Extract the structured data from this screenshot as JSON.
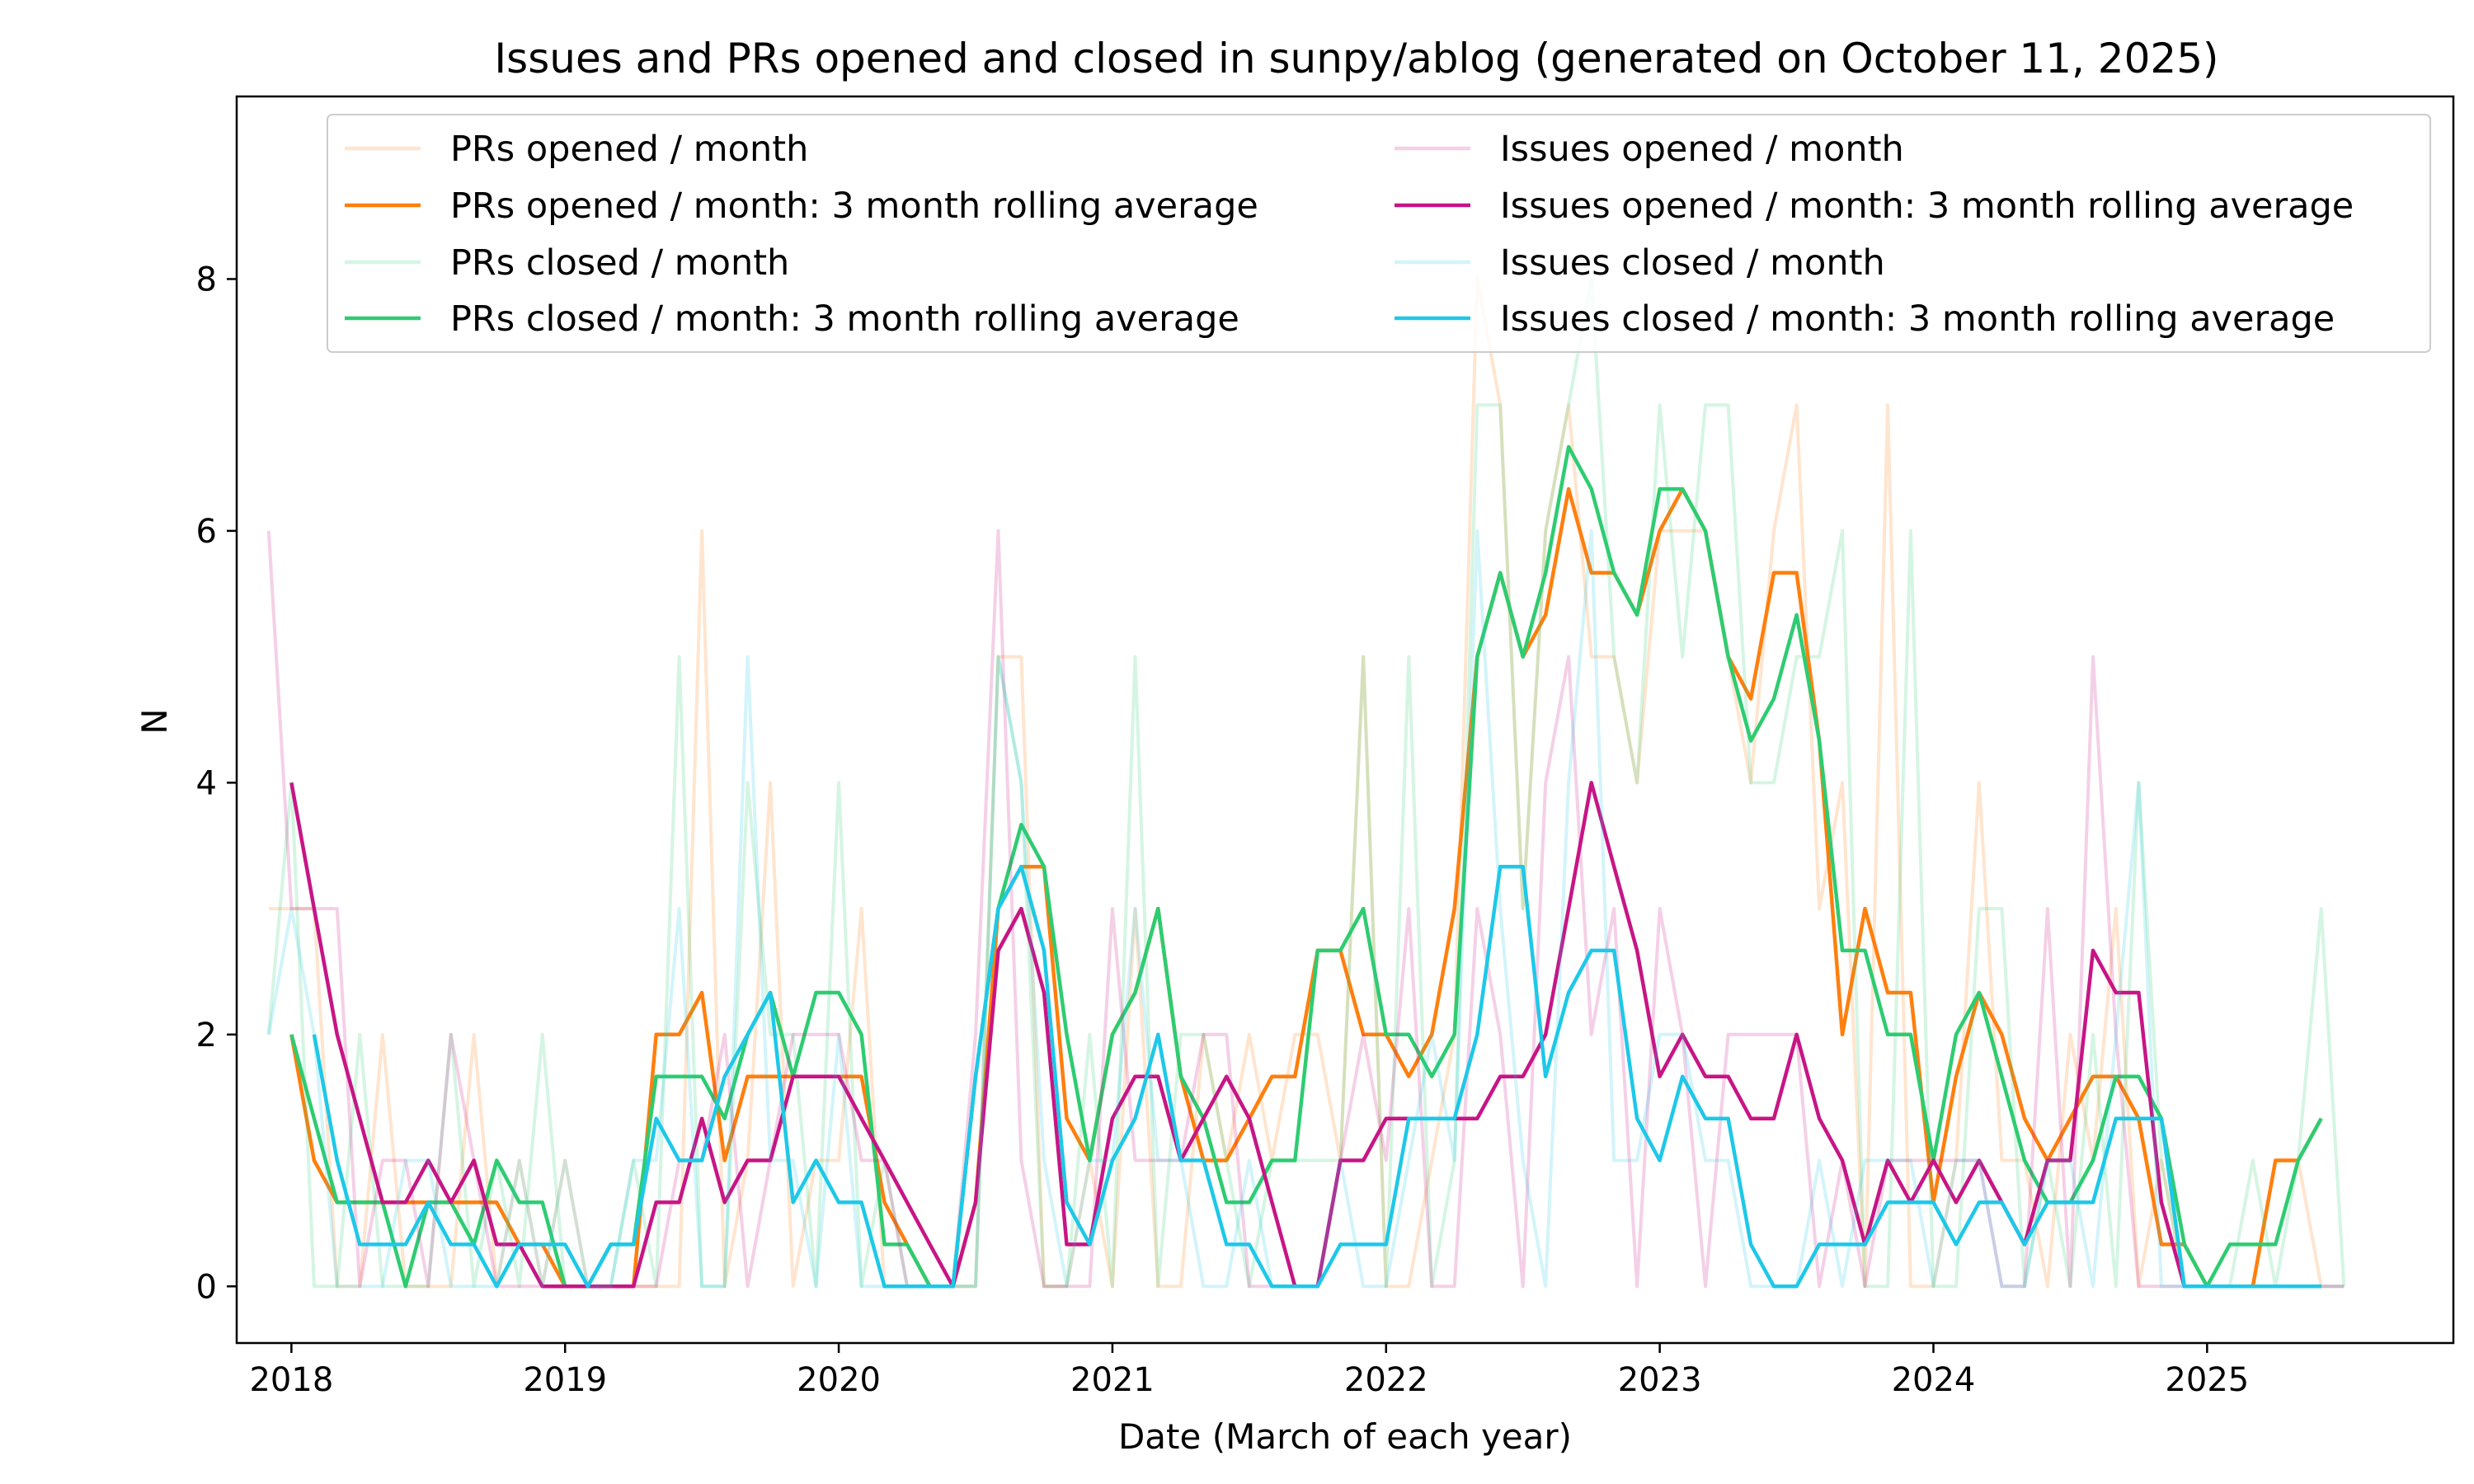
{
  "chart_data": {
    "type": "line",
    "title": "Issues and PRs opened and closed in sunpy/ablog (generated on October 11, 2025)",
    "xlabel": "Date (March of each year)",
    "ylabel": "N",
    "xlim": [
      2017.8,
      2025.9
    ],
    "ylim": [
      -0.45,
      9.45
    ],
    "x_ticks": [
      2018,
      2019,
      2020,
      2021,
      2022,
      2023,
      2024,
      2025
    ],
    "x_tick_labels": [
      "2018",
      "2019",
      "2020",
      "2021",
      "2022",
      "2023",
      "2024",
      "2025"
    ],
    "y_ticks": [
      0,
      2,
      4,
      6,
      8
    ],
    "y_tick_labels": [
      "0",
      "2",
      "4",
      "6",
      "8"
    ],
    "grid": false,
    "legend_position": "top",
    "legend_columns": 2,
    "x": [
      2017.917,
      2018.0,
      2018.083,
      2018.167,
      2018.25,
      2018.333,
      2018.417,
      2018.5,
      2018.583,
      2018.667,
      2018.75,
      2018.833,
      2018.917,
      2019.0,
      2019.083,
      2019.167,
      2019.25,
      2019.333,
      2019.417,
      2019.5,
      2019.583,
      2019.667,
      2019.75,
      2019.833,
      2019.917,
      2020.0,
      2020.083,
      2020.167,
      2020.25,
      2020.333,
      2020.417,
      2020.5,
      2020.583,
      2020.667,
      2020.75,
      2020.833,
      2020.917,
      2021.0,
      2021.083,
      2021.167,
      2021.25,
      2021.333,
      2021.417,
      2021.5,
      2021.583,
      2021.667,
      2021.75,
      2021.833,
      2021.917,
      2022.0,
      2022.083,
      2022.167,
      2022.25,
      2022.333,
      2022.417,
      2022.5,
      2022.583,
      2022.667,
      2022.75,
      2022.833,
      2022.917,
      2023.0,
      2023.083,
      2023.167,
      2023.25,
      2023.333,
      2023.417,
      2023.5,
      2023.583,
      2023.667,
      2023.75,
      2023.833,
      2023.917,
      2024.0,
      2024.083,
      2024.167,
      2024.25,
      2024.333,
      2024.417,
      2024.5,
      2024.583,
      2024.667,
      2024.75,
      2024.833,
      2024.917,
      2025.0,
      2025.083,
      2025.167,
      2025.25,
      2025.333,
      2025.417,
      2025.5
    ],
    "series": [
      {
        "name": "PRs opened / month",
        "color": "#ff7f0e",
        "alpha": 0.2,
        "values": [
          3,
          3,
          3,
          0,
          0,
          2,
          0,
          0,
          0,
          2,
          0,
          1,
          0,
          1,
          0,
          0,
          0,
          0,
          0,
          6,
          0,
          1,
          4,
          0,
          1,
          1,
          3,
          0,
          0,
          0,
          0,
          0,
          5,
          5,
          0,
          0,
          1,
          0,
          3,
          0,
          0,
          2,
          1,
          2,
          1,
          2,
          2,
          1,
          5,
          0,
          0,
          1,
          2,
          8,
          7,
          3,
          6,
          7,
          5,
          5,
          4,
          6,
          6,
          6,
          5,
          4,
          6,
          7,
          3,
          4,
          0,
          7,
          0,
          0,
          1,
          4,
          1,
          1,
          0,
          2,
          1,
          3,
          0,
          1,
          0,
          0,
          0,
          0,
          1,
          1,
          0,
          0
        ]
      },
      {
        "name": "PRs opened / month: 3 month rolling average",
        "color": "#ff7f0e",
        "alpha": 1,
        "values": [
          null,
          2,
          1,
          0.667,
          0.667,
          0.667,
          0.667,
          0.667,
          0.667,
          0.667,
          0.667,
          0.333,
          0.333,
          0,
          0,
          0,
          0,
          2,
          2,
          2.333,
          1,
          1.667,
          1.667,
          1.667,
          1.667,
          1.667,
          1.667,
          0.667,
          0.333,
          0,
          0,
          0.667,
          3,
          3.333,
          3.333,
          1.333,
          1,
          2,
          2.333,
          3,
          1.667,
          1,
          1,
          1.333,
          1.667,
          1.667,
          2.667,
          2.667,
          2,
          2,
          1.667,
          2,
          3,
          5,
          5.667,
          5,
          5.333,
          6.333,
          5.667,
          5.667,
          5.333,
          6,
          6.333,
          6,
          5,
          4.667,
          5.667,
          5.667,
          4.333,
          2,
          3,
          2.333,
          2.333,
          0.667,
          1.667,
          2.333,
          2,
          1.333,
          1,
          1.333,
          1.667,
          1.667,
          1.333,
          0.333,
          0.333,
          0,
          0,
          0,
          1,
          1,
          1.333,
          null
        ]
      },
      {
        "name": "PRs closed / month",
        "color": "#2ecc71",
        "alpha": 0.2,
        "values": [
          2,
          4,
          0,
          0,
          2,
          0,
          0,
          0,
          2,
          0,
          1,
          0,
          2,
          0,
          0,
          0,
          1,
          0,
          5,
          0,
          0,
          4,
          2,
          2,
          0,
          4,
          0,
          1,
          0,
          0,
          0,
          0,
          5,
          4,
          0,
          0,
          2,
          0,
          5,
          0,
          2,
          2,
          1,
          0,
          1,
          1,
          1,
          1,
          5,
          0,
          5,
          0,
          1,
          7,
          7,
          3,
          6,
          7,
          8,
          5,
          4,
          7,
          5,
          7,
          7,
          4,
          4,
          5,
          5,
          6,
          0,
          0,
          6,
          0,
          0,
          3,
          3,
          0,
          1,
          0,
          2,
          0,
          4,
          1,
          0,
          0,
          0,
          1,
          0,
          1,
          3,
          0
        ]
      },
      {
        "name": "PRs closed / month: 3 month rolling average",
        "color": "#2ecc71",
        "alpha": 1,
        "values": [
          null,
          2,
          1.333,
          0.667,
          0.667,
          0.667,
          0,
          0.667,
          0.667,
          0.333,
          1,
          0.667,
          0.667,
          0,
          0,
          0.333,
          0.333,
          1.667,
          1.667,
          1.667,
          1.333,
          2,
          2.333,
          1.667,
          2.333,
          2.333,
          2,
          0.333,
          0.333,
          0,
          0,
          1.667,
          3,
          3.667,
          3.333,
          2,
          1,
          2,
          2.333,
          3,
          1.667,
          1.333,
          0.667,
          0.667,
          1,
          1,
          2.667,
          2.667,
          3,
          2,
          2,
          1.667,
          2,
          5,
          5.667,
          5,
          5.667,
          6.667,
          6.333,
          5.667,
          5.333,
          6.333,
          6.333,
          6,
          5,
          4.333,
          4.667,
          5.333,
          4.333,
          2.667,
          2.667,
          2,
          2,
          1,
          2,
          2.333,
          1.667,
          1,
          0.667,
          0.667,
          1,
          1.667,
          1.667,
          1.333,
          0.333,
          0,
          0.333,
          0.333,
          0.333,
          1,
          1.333,
          null
        ]
      },
      {
        "name": "Issues opened / month",
        "color": "#c71585",
        "alpha": 0.2,
        "values": [
          6,
          3,
          3,
          3,
          0,
          1,
          1,
          0,
          2,
          1,
          0,
          0,
          0,
          0,
          0,
          0,
          0,
          0,
          1,
          1,
          2,
          0,
          1,
          2,
          2,
          2,
          1,
          1,
          0,
          0,
          0,
          2,
          6,
          1,
          0,
          0,
          0,
          3,
          1,
          1,
          1,
          2,
          2,
          0,
          0,
          0,
          0,
          1,
          2,
          1,
          3,
          0,
          0,
          3,
          2,
          0,
          4,
          5,
          2,
          3,
          0,
          3,
          2,
          0,
          2,
          2,
          2,
          2,
          0,
          1,
          0,
          1,
          1,
          1,
          1,
          1,
          0,
          0,
          3,
          0,
          5,
          2,
          0,
          0,
          0,
          0,
          0,
          0,
          0,
          0,
          0,
          0
        ]
      },
      {
        "name": "Issues opened / month: 3 month rolling average",
        "color": "#c71585",
        "alpha": 1,
        "values": [
          null,
          4,
          3,
          2,
          1.333,
          0.667,
          0.667,
          1,
          0.667,
          1,
          0.333,
          0.333,
          0,
          0,
          0,
          0,
          0,
          0.667,
          0.667,
          1.333,
          0.667,
          1,
          1,
          1.667,
          1.667,
          1.667,
          1.333,
          1,
          0.667,
          0.333,
          0,
          0.667,
          2.667,
          3,
          2.333,
          0.333,
          0.333,
          1.333,
          1.667,
          1.667,
          1,
          1.333,
          1.667,
          1.333,
          0.667,
          0,
          0,
          1,
          1,
          1.333,
          1.333,
          1.333,
          1.333,
          1.333,
          1.667,
          1.667,
          2,
          3,
          4,
          3.333,
          2.667,
          1.667,
          2,
          1.667,
          1.667,
          1.333,
          1.333,
          2,
          1.333,
          1,
          0.333,
          1,
          0.667,
          1,
          0.667,
          1,
          0.667,
          0.333,
          1,
          1,
          2.667,
          2.333,
          2.333,
          0.667,
          0,
          0,
          0,
          0,
          0,
          0,
          0,
          null
        ]
      },
      {
        "name": "Issues closed / month",
        "color": "#1ec8e8",
        "alpha": 0.2,
        "values": [
          2,
          3,
          2,
          0,
          0,
          0,
          1,
          1,
          0,
          0,
          0,
          1,
          0,
          1,
          0,
          0,
          1,
          1,
          3,
          0,
          0,
          5,
          1,
          1,
          0,
          2,
          0,
          0,
          0,
          0,
          0,
          0,
          5,
          4,
          1,
          0,
          1,
          1,
          3,
          1,
          1,
          0,
          0,
          1,
          0,
          0,
          0,
          1,
          0,
          0,
          1,
          2,
          1,
          6,
          3,
          1,
          0,
          4,
          6,
          1,
          1,
          2,
          2,
          1,
          1,
          0,
          0,
          0,
          1,
          0,
          1,
          1,
          1,
          0,
          1,
          1,
          0,
          0,
          1,
          1,
          0,
          2,
          4,
          0,
          0,
          0,
          0,
          0,
          0,
          0,
          0,
          0
        ]
      },
      {
        "name": "Issues closed / month: 3 month rolling average",
        "color": "#1ec8e8",
        "alpha": 1,
        "values": [
          null,
          null,
          2,
          1,
          0.333,
          0.333,
          0.333,
          0.667,
          0.333,
          0.333,
          0,
          0.333,
          0.333,
          0.333,
          0,
          0.333,
          0.333,
          1.333,
          1,
          1,
          1.667,
          2,
          2.333,
          0.667,
          1,
          0.667,
          0.667,
          0,
          0,
          0,
          0,
          1.667,
          3,
          3.333,
          2.667,
          0.667,
          0.333,
          1,
          1.333,
          2,
          1,
          1,
          0.333,
          0.333,
          0,
          0,
          0,
          0.333,
          0.333,
          0.333,
          1.333,
          1.333,
          1.333,
          2,
          3.333,
          3.333,
          1.667,
          2.333,
          2.667,
          2.667,
          1.333,
          1,
          1.667,
          1.333,
          1.333,
          0.333,
          0,
          0,
          0.333,
          0.333,
          0.333,
          0.667,
          0.667,
          0.667,
          0.333,
          0.667,
          0.667,
          0.333,
          0.667,
          0.667,
          0.667,
          1.333,
          1.333,
          1.333,
          0,
          0,
          0,
          0,
          0,
          0,
          0,
          null
        ]
      }
    ]
  }
}
